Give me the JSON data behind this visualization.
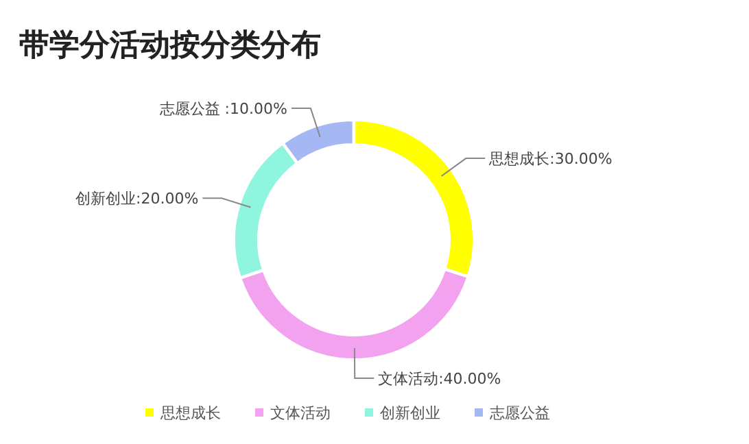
{
  "chart_data": {
    "type": "donut",
    "title": "带学分活动按分类分布",
    "categories": [
      "思想成长",
      "文体活动",
      "创新创业",
      "志愿公益"
    ],
    "values": [
      30,
      40,
      20,
      10
    ],
    "colors": [
      "#ffff00",
      "#f2a2ee",
      "#8ff5df",
      "#a6b8f4"
    ],
    "value_labels": [
      "思想成长:30.00%",
      "文体活动:40.00%",
      "创新创业:20.00%",
      "志愿公益 :10.00%"
    ],
    "legend": "bottom"
  }
}
